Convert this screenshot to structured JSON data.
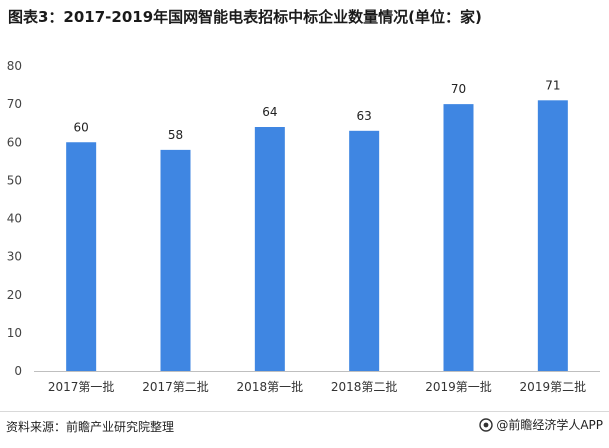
{
  "header": {
    "title": "图表3：2017-2019年国网智能电表招标中标企业数量情况(单位：家)"
  },
  "footer": {
    "source": "资料来源：前瞻产业研究院整理",
    "brand": "@前瞻经济学人APP"
  },
  "colors": {
    "bar": "#3f86e2",
    "axis": "#bfbfbf"
  },
  "chart_data": {
    "type": "bar",
    "title": "图表3：2017-2019年国网智能电表招标中标企业数量情况(单位：家)",
    "categories": [
      "2017第一批",
      "2017第二批",
      "2018第一批",
      "2018第二批",
      "2019第一批",
      "2019第二批"
    ],
    "values": [
      60,
      58,
      64,
      63,
      70,
      71
    ],
    "yticks": [
      0,
      10,
      20,
      30,
      40,
      50,
      60,
      70,
      80
    ],
    "ylim": [
      0,
      80
    ],
    "xlabel": "",
    "ylabel": "",
    "grid": false,
    "legend": "none"
  }
}
